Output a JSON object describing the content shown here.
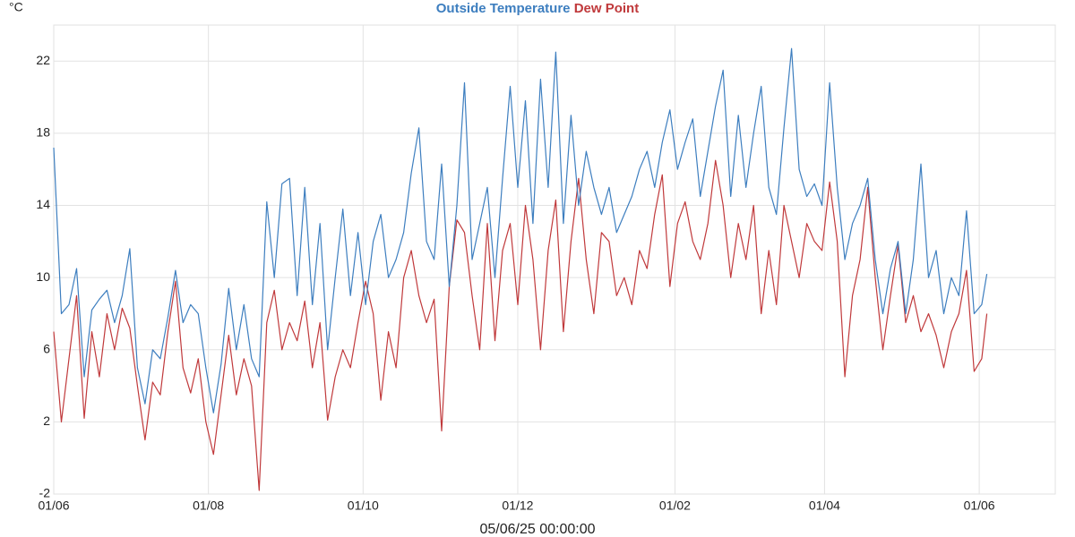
{
  "chart_data": {
    "type": "line",
    "y_unit": "°C",
    "x_label": "05/06/25 00:00:00",
    "x": [
      0,
      3,
      6,
      9,
      12,
      15,
      18,
      21,
      24,
      27,
      30,
      33,
      36,
      39,
      42,
      45,
      48,
      51,
      54,
      57,
      60,
      63,
      66,
      69,
      72,
      75,
      78,
      81,
      84,
      87,
      90,
      93,
      96,
      99,
      102,
      105,
      108,
      111,
      114,
      117,
      120,
      123,
      126,
      129,
      132,
      135,
      138,
      141,
      144,
      147,
      150,
      153,
      156,
      159,
      162,
      165,
      168,
      171,
      174,
      177,
      180,
      183,
      186,
      189,
      192,
      195,
      198,
      201,
      204,
      207,
      210,
      213,
      216,
      219,
      222,
      225,
      228,
      231,
      234,
      237,
      240,
      243,
      246,
      249,
      252,
      255,
      258,
      261,
      264,
      267,
      270,
      273,
      276,
      279,
      282,
      285,
      288,
      291,
      294,
      297,
      300,
      303,
      306,
      309,
      312,
      315,
      318,
      321,
      324,
      327,
      330,
      333,
      336,
      339,
      342,
      345,
      348,
      351,
      354,
      357,
      360,
      363,
      366,
      368
    ],
    "series": [
      {
        "name": "Outside Temperature",
        "color": "#3d7ebf",
        "values": [
          17.2,
          8,
          8.5,
          10.5,
          4.5,
          8.2,
          8.8,
          9.3,
          7.5,
          9,
          11.6,
          5,
          3,
          6,
          5.5,
          7.8,
          10.4,
          7.5,
          8.5,
          8,
          5,
          2.5,
          5.2,
          9.4,
          6,
          8.5,
          5.5,
          4.5,
          14.2,
          10,
          15.2,
          15.5,
          9,
          15,
          8.5,
          13,
          6,
          10,
          13.8,
          9,
          12.5,
          8.5,
          12,
          13.5,
          10,
          11,
          12.5,
          15.8,
          18.3,
          12,
          11,
          16.3,
          9.5,
          14,
          20.8,
          11,
          13,
          15,
          10,
          15.5,
          20.6,
          15,
          19.8,
          13,
          21,
          15,
          22.5,
          13,
          19,
          14,
          17,
          15,
          13.5,
          15,
          12.5,
          13.5,
          14.5,
          16,
          17,
          15,
          17.5,
          19.3,
          16,
          17.5,
          18.8,
          14.5,
          17,
          19.5,
          21.5,
          14.5,
          19,
          15,
          18,
          20.6,
          15,
          13.5,
          18.3,
          22.7,
          16,
          14.5,
          15.2,
          14,
          20.8,
          15,
          11,
          13,
          14,
          15.5,
          11,
          8,
          10.5,
          12,
          8,
          11,
          16.3,
          10,
          11.5,
          8,
          10,
          9,
          13.7,
          8,
          8.5,
          10.2
        ]
      },
      {
        "name": "Dew Point",
        "color": "#c0393b",
        "values": [
          7,
          2,
          5.5,
          9,
          2.2,
          7,
          4.5,
          8,
          6,
          8.3,
          7.2,
          4,
          1,
          4.2,
          3.5,
          7,
          9.8,
          5,
          3.6,
          5.5,
          2,
          0.2,
          3.5,
          6.8,
          3.5,
          5.5,
          4,
          -1.8,
          7.5,
          9.3,
          6,
          7.5,
          6.5,
          8.7,
          5,
          7.5,
          2.1,
          4.5,
          6,
          5,
          7.5,
          9.8,
          8,
          3.2,
          7,
          5,
          10,
          11.5,
          9,
          7.5,
          8.8,
          1.5,
          9.5,
          13.2,
          12.5,
          9,
          6,
          13,
          6.5,
          11.5,
          13,
          8.5,
          14,
          11,
          6,
          11.5,
          14.3,
          7,
          12,
          15.5,
          11,
          8,
          12.5,
          12,
          9,
          10,
          8.5,
          11.5,
          10.5,
          13.5,
          15.7,
          9.5,
          13,
          14.2,
          12,
          11,
          13,
          16.5,
          14,
          10,
          13,
          11,
          14,
          8,
          11.5,
          8.5,
          14,
          12,
          10,
          13,
          12,
          11.5,
          15.3,
          12,
          4.5,
          9,
          11,
          15,
          10,
          6,
          9,
          11.8,
          7.5,
          9,
          7,
          8,
          6.8,
          5,
          7,
          8,
          10.4,
          4.8,
          5.5,
          8
        ]
      }
    ],
    "xlim": [
      0,
      395
    ],
    "xticks": [
      {
        "value": 0,
        "label": "01/06"
      },
      {
        "value": 61,
        "label": "01/08"
      },
      {
        "value": 122,
        "label": "01/10"
      },
      {
        "value": 183,
        "label": "01/12"
      },
      {
        "value": 245,
        "label": "01/02"
      },
      {
        "value": 304,
        "label": "01/04"
      },
      {
        "value": 365,
        "label": "01/06"
      }
    ],
    "ylim": [
      -2,
      24
    ],
    "yticks": [
      -2,
      2,
      6,
      10,
      14,
      18,
      22
    ],
    "grid": true
  }
}
